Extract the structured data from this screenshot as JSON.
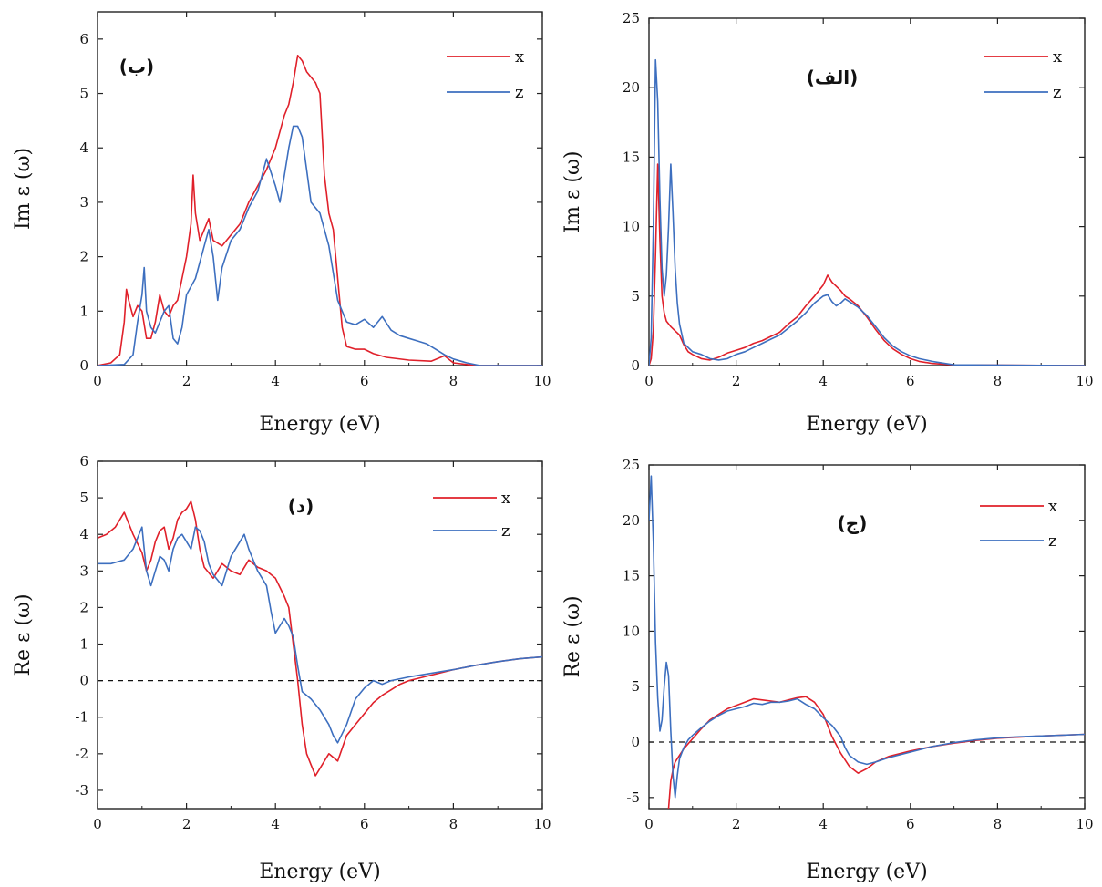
{
  "chart_data": [
    {
      "id": "panel_b",
      "type": "line",
      "panel_tag": "(ب)",
      "xlabel": "Energy (eV)",
      "ylabel": "Im ε (ω)",
      "xlim": [
        0,
        10
      ],
      "ylim": [
        0,
        6.5
      ],
      "xticks": [
        "0",
        "2",
        "4",
        "6",
        "8",
        "10"
      ],
      "yticks": [
        "0",
        "1",
        "2",
        "3",
        "4",
        "5",
        "6"
      ],
      "zero_line": false,
      "legend": "top-right",
      "series": [
        {
          "name": "x",
          "color": "#e0202a",
          "x": [
            0,
            0.3,
            0.5,
            0.6,
            0.65,
            0.7,
            0.8,
            0.9,
            1.0,
            1.1,
            1.2,
            1.3,
            1.4,
            1.5,
            1.6,
            1.7,
            1.8,
            1.9,
            2.0,
            2.1,
            2.15,
            2.2,
            2.3,
            2.4,
            2.5,
            2.6,
            2.8,
            3.0,
            3.2,
            3.4,
            3.6,
            3.8,
            4.0,
            4.2,
            4.3,
            4.4,
            4.5,
            4.6,
            4.7,
            4.8,
            4.9,
            5.0,
            5.1,
            5.2,
            5.3,
            5.4,
            5.5,
            5.6,
            5.8,
            6.0,
            6.2,
            6.5,
            7.0,
            7.5,
            7.8,
            8.0,
            8.5,
            10
          ],
          "y": [
            0,
            0.05,
            0.2,
            0.8,
            1.4,
            1.2,
            0.9,
            1.1,
            1.0,
            0.5,
            0.5,
            0.8,
            1.3,
            1.0,
            0.9,
            1.1,
            1.2,
            1.6,
            2.0,
            2.6,
            3.5,
            2.8,
            2.3,
            2.5,
            2.7,
            2.3,
            2.2,
            2.4,
            2.6,
            3.0,
            3.3,
            3.6,
            4.0,
            4.6,
            4.8,
            5.2,
            5.7,
            5.6,
            5.4,
            5.3,
            5.2,
            5.0,
            3.5,
            2.8,
            2.5,
            1.6,
            0.7,
            0.35,
            0.3,
            0.3,
            0.22,
            0.15,
            0.1,
            0.08,
            0.18,
            0.05,
            0,
            0
          ]
        },
        {
          "name": "z",
          "color": "#3d6fbf",
          "x": [
            0,
            0.6,
            0.8,
            0.9,
            1.0,
            1.05,
            1.1,
            1.2,
            1.3,
            1.4,
            1.5,
            1.6,
            1.7,
            1.8,
            1.9,
            2.0,
            2.2,
            2.4,
            2.5,
            2.6,
            2.7,
            2.8,
            3.0,
            3.2,
            3.4,
            3.6,
            3.8,
            4.0,
            4.1,
            4.2,
            4.3,
            4.4,
            4.5,
            4.6,
            4.7,
            4.8,
            5.0,
            5.2,
            5.4,
            5.6,
            5.8,
            6.0,
            6.2,
            6.4,
            6.6,
            6.8,
            7.0,
            7.2,
            7.4,
            7.6,
            7.8,
            8.0,
            8.3,
            8.6,
            10
          ],
          "y": [
            0,
            0.02,
            0.2,
            0.8,
            1.3,
            1.8,
            1.0,
            0.7,
            0.6,
            0.8,
            1.0,
            1.1,
            0.5,
            0.4,
            0.7,
            1.3,
            1.6,
            2.2,
            2.5,
            2.0,
            1.2,
            1.8,
            2.3,
            2.5,
            2.9,
            3.2,
            3.8,
            3.3,
            3.0,
            3.5,
            4.0,
            4.4,
            4.4,
            4.2,
            3.6,
            3.0,
            2.8,
            2.2,
            1.2,
            0.8,
            0.75,
            0.85,
            0.7,
            0.9,
            0.65,
            0.55,
            0.5,
            0.45,
            0.4,
            0.3,
            0.2,
            0.12,
            0.05,
            0,
            0
          ]
        }
      ]
    },
    {
      "id": "panel_alef",
      "type": "line",
      "panel_tag": "(الف)",
      "xlabel": "Energy (eV)",
      "ylabel": "Im ε (ω)",
      "xlim": [
        0,
        10
      ],
      "ylim": [
        0,
        25
      ],
      "xticks": [
        "0",
        "2",
        "4",
        "6",
        "8",
        "10"
      ],
      "yticks": [
        "0",
        "5",
        "10",
        "15",
        "20",
        "25"
      ],
      "zero_line": false,
      "legend": "top-right",
      "series": [
        {
          "name": "x",
          "color": "#e0202a",
          "x": [
            0,
            0.05,
            0.1,
            0.15,
            0.2,
            0.25,
            0.3,
            0.35,
            0.4,
            0.5,
            0.6,
            0.7,
            0.8,
            0.9,
            1.0,
            1.2,
            1.4,
            1.6,
            1.8,
            2.0,
            2.2,
            2.4,
            2.6,
            2.8,
            3.0,
            3.2,
            3.4,
            3.6,
            3.8,
            4.0,
            4.1,
            4.2,
            4.3,
            4.4,
            4.5,
            4.6,
            4.8,
            5.0,
            5.2,
            5.4,
            5.6,
            5.8,
            6.0,
            6.2,
            6.5,
            7.0,
            10
          ],
          "y": [
            0,
            0.5,
            2.5,
            8.0,
            14.5,
            9.0,
            5.0,
            3.8,
            3.2,
            2.8,
            2.5,
            2.2,
            1.5,
            1.0,
            0.8,
            0.5,
            0.4,
            0.6,
            0.9,
            1.1,
            1.3,
            1.6,
            1.8,
            2.1,
            2.4,
            3.0,
            3.5,
            4.3,
            5.0,
            5.8,
            6.5,
            6.0,
            5.7,
            5.4,
            5.0,
            4.8,
            4.3,
            3.5,
            2.6,
            1.8,
            1.2,
            0.8,
            0.5,
            0.3,
            0.15,
            0.05,
            0
          ]
        },
        {
          "name": "z",
          "color": "#3d6fbf",
          "x": [
            0,
            0.05,
            0.1,
            0.15,
            0.2,
            0.25,
            0.3,
            0.35,
            0.4,
            0.45,
            0.5,
            0.55,
            0.6,
            0.65,
            0.7,
            0.8,
            1.0,
            1.2,
            1.4,
            1.6,
            1.8,
            2.0,
            2.2,
            2.4,
            2.6,
            2.8,
            3.0,
            3.2,
            3.4,
            3.6,
            3.8,
            4.0,
            4.1,
            4.2,
            4.3,
            4.4,
            4.5,
            4.6,
            4.8,
            5.0,
            5.2,
            5.4,
            5.6,
            5.8,
            6.0,
            6.2,
            6.5,
            6.8,
            7.0,
            10
          ],
          "y": [
            0,
            2.0,
            10.0,
            22.0,
            19.0,
            12.0,
            7.0,
            5.0,
            6.5,
            10.0,
            14.5,
            11.0,
            7.0,
            4.5,
            3.0,
            1.6,
            1.0,
            0.8,
            0.5,
            0.4,
            0.5,
            0.8,
            1.0,
            1.3,
            1.6,
            1.9,
            2.2,
            2.7,
            3.2,
            3.8,
            4.5,
            5.0,
            5.1,
            4.6,
            4.3,
            4.5,
            4.8,
            4.6,
            4.2,
            3.6,
            2.8,
            2.0,
            1.4,
            1.0,
            0.7,
            0.5,
            0.3,
            0.15,
            0.05,
            0
          ]
        }
      ]
    },
    {
      "id": "panel_dal",
      "type": "line",
      "panel_tag": "(د)",
      "xlabel": "Energy (eV)",
      "ylabel": "Re ε (ω)",
      "xlim": [
        0,
        10
      ],
      "ylim": [
        -3.5,
        6
      ],
      "xticks": [
        "0",
        "2",
        "4",
        "6",
        "8",
        "10"
      ],
      "yticks": [
        "-3",
        "-2",
        "-1",
        "0",
        "1",
        "2",
        "3",
        "4",
        "5",
        "6"
      ],
      "zero_line": true,
      "legend": "top-right",
      "series": [
        {
          "name": "x",
          "color": "#e0202a",
          "x": [
            0,
            0.2,
            0.4,
            0.6,
            0.7,
            0.8,
            1.0,
            1.1,
            1.2,
            1.3,
            1.4,
            1.5,
            1.6,
            1.7,
            1.8,
            1.9,
            2.0,
            2.1,
            2.2,
            2.3,
            2.4,
            2.6,
            2.8,
            3.0,
            3.2,
            3.4,
            3.6,
            3.8,
            4.0,
            4.2,
            4.3,
            4.4,
            4.5,
            4.6,
            4.7,
            4.8,
            4.9,
            5.0,
            5.2,
            5.4,
            5.6,
            5.8,
            6.0,
            6.2,
            6.4,
            6.6,
            6.8,
            7.0,
            7.5,
            8.0,
            8.5,
            9.0,
            9.5,
            10
          ],
          "y": [
            3.9,
            4.0,
            4.2,
            4.6,
            4.3,
            4.0,
            3.5,
            3.0,
            3.3,
            3.8,
            4.1,
            4.2,
            3.6,
            3.9,
            4.4,
            4.6,
            4.7,
            4.9,
            4.4,
            3.6,
            3.1,
            2.8,
            3.2,
            3.0,
            2.9,
            3.3,
            3.1,
            3.0,
            2.8,
            2.3,
            2.0,
            1.0,
            0.0,
            -1.2,
            -2.0,
            -2.3,
            -2.6,
            -2.4,
            -2.0,
            -2.2,
            -1.5,
            -1.2,
            -0.9,
            -0.6,
            -0.4,
            -0.25,
            -0.1,
            0.0,
            0.15,
            0.3,
            0.42,
            0.52,
            0.6,
            0.65
          ]
        },
        {
          "name": "z",
          "color": "#3d6fbf",
          "x": [
            0,
            0.3,
            0.6,
            0.8,
            0.9,
            1.0,
            1.05,
            1.1,
            1.2,
            1.3,
            1.4,
            1.5,
            1.6,
            1.7,
            1.8,
            1.9,
            2.0,
            2.1,
            2.2,
            2.3,
            2.4,
            2.5,
            2.6,
            2.8,
            3.0,
            3.1,
            3.2,
            3.3,
            3.4,
            3.6,
            3.8,
            3.9,
            4.0,
            4.2,
            4.3,
            4.4,
            4.5,
            4.6,
            4.8,
            5.0,
            5.2,
            5.3,
            5.4,
            5.6,
            5.8,
            6.0,
            6.2,
            6.4,
            6.6,
            6.8,
            7.0,
            7.5,
            8.0,
            8.5,
            9.0,
            9.5,
            10
          ],
          "y": [
            3.2,
            3.2,
            3.3,
            3.6,
            3.9,
            4.2,
            3.6,
            3.0,
            2.6,
            3.0,
            3.4,
            3.3,
            3.0,
            3.6,
            3.9,
            4.0,
            3.8,
            3.6,
            4.2,
            4.1,
            3.8,
            3.2,
            2.9,
            2.6,
            3.4,
            3.6,
            3.8,
            4.0,
            3.6,
            3.0,
            2.6,
            1.9,
            1.3,
            1.7,
            1.5,
            1.2,
            0.4,
            -0.3,
            -0.5,
            -0.8,
            -1.2,
            -1.5,
            -1.7,
            -1.2,
            -0.5,
            -0.2,
            0.0,
            -0.1,
            0.0,
            0.05,
            0.1,
            0.2,
            0.3,
            0.42,
            0.52,
            0.6,
            0.65
          ]
        }
      ]
    },
    {
      "id": "panel_jim",
      "type": "line",
      "panel_tag": "(ج)",
      "xlabel": "Energy (eV)",
      "ylabel": "Re ε (ω)",
      "xlim": [
        0,
        10
      ],
      "ylim": [
        -6,
        25
      ],
      "xticks": [
        "0",
        "2",
        "4",
        "6",
        "8",
        "10"
      ],
      "yticks": [
        "-5",
        "0",
        "5",
        "10",
        "15",
        "20",
        "25"
      ],
      "zero_line": true,
      "legend": "top-right",
      "series": [
        {
          "name": "x",
          "color": "#e0202a",
          "x": [
            0.45,
            0.5,
            0.55,
            0.6,
            0.7,
            0.8,
            1.0,
            1.2,
            1.4,
            1.6,
            1.8,
            2.0,
            2.2,
            2.4,
            2.6,
            2.8,
            3.0,
            3.2,
            3.4,
            3.6,
            3.8,
            4.0,
            4.2,
            4.4,
            4.6,
            4.8,
            5.0,
            5.2,
            5.5,
            6.0,
            6.5,
            7.0,
            7.5,
            8.0,
            8.5,
            9.0,
            10
          ],
          "y": [
            -6,
            -3.5,
            -2.5,
            -1.8,
            -1.2,
            -0.6,
            0.3,
            1.2,
            2.0,
            2.5,
            3.0,
            3.3,
            3.6,
            3.9,
            3.8,
            3.7,
            3.6,
            3.8,
            4.0,
            4.1,
            3.6,
            2.5,
            0.5,
            -1.0,
            -2.2,
            -2.8,
            -2.4,
            -1.8,
            -1.3,
            -0.8,
            -0.4,
            -0.1,
            0.15,
            0.35,
            0.45,
            0.55,
            0.7
          ]
        },
        {
          "name": "z",
          "color": "#3d6fbf",
          "x": [
            0,
            0.05,
            0.1,
            0.15,
            0.2,
            0.25,
            0.3,
            0.35,
            0.4,
            0.45,
            0.5,
            0.55,
            0.6,
            0.65,
            0.7,
            0.8,
            0.9,
            1.0,
            1.2,
            1.4,
            1.6,
            1.8,
            2.0,
            2.2,
            2.4,
            2.6,
            2.8,
            3.0,
            3.2,
            3.4,
            3.6,
            3.8,
            4.0,
            4.2,
            4.4,
            4.5,
            4.6,
            4.8,
            5.0,
            5.2,
            5.5,
            6.0,
            6.5,
            7.0,
            7.5,
            8.0,
            8.5,
            9.0,
            10
          ],
          "y": [
            20.0,
            24.0,
            18.0,
            9.0,
            4.0,
            1.0,
            2.0,
            5.0,
            7.2,
            6.0,
            1.0,
            -3.0,
            -5.0,
            -3.0,
            -1.5,
            -0.5,
            0.2,
            0.6,
            1.3,
            1.9,
            2.4,
            2.8,
            3.0,
            3.2,
            3.5,
            3.4,
            3.6,
            3.6,
            3.7,
            3.9,
            3.4,
            3.0,
            2.2,
            1.5,
            0.5,
            -0.5,
            -1.2,
            -1.8,
            -2.0,
            -1.8,
            -1.4,
            -0.9,
            -0.4,
            -0.05,
            0.2,
            0.38,
            0.48,
            0.55,
            0.7
          ]
        }
      ]
    }
  ]
}
